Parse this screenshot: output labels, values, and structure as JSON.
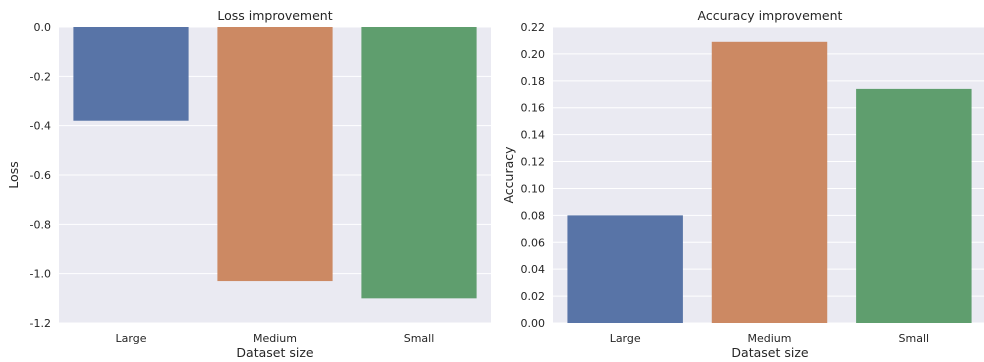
{
  "colors": {
    "background": "#eaeaf2",
    "grid": "#ffffff",
    "text": "#262626",
    "bars": [
      "#5874a7",
      "#cc8963",
      "#5f9e6e"
    ]
  },
  "chart_data": [
    {
      "type": "bar",
      "title": "Loss improvement",
      "xlabel": "Dataset size",
      "ylabel": "Loss",
      "categories": [
        "Large",
        "Medium",
        "Small"
      ],
      "values": [
        -0.38,
        -1.03,
        -1.1
      ],
      "ylim": [
        -1.2,
        0.0
      ],
      "yticks": [
        "0.0",
        "-0.2",
        "-0.4",
        "-0.6",
        "-0.8",
        "-1.0",
        "-1.2"
      ],
      "grid": true
    },
    {
      "type": "bar",
      "title": "Accuracy improvement",
      "xlabel": "Dataset size",
      "ylabel": "Accuracy",
      "categories": [
        "Large",
        "Medium",
        "Small"
      ],
      "values": [
        0.08,
        0.209,
        0.174
      ],
      "ylim": [
        0.0,
        0.22
      ],
      "yticks": [
        "0.22",
        "0.20",
        "0.18",
        "0.16",
        "0.14",
        "0.12",
        "0.10",
        "0.08",
        "0.06",
        "0.04",
        "0.02",
        "0.00"
      ],
      "grid": true
    }
  ]
}
